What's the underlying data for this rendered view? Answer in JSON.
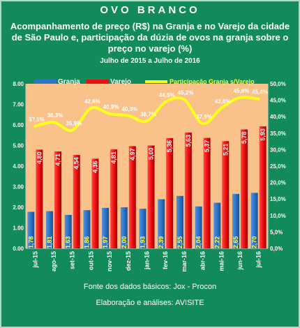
{
  "header": {
    "title": "OVO BRANCO",
    "subtitle": "Acompanhamento de preço (R$) na Granja e no Varejo da cidade de São Paulo e, participação da dúzia de ovos na granja sobre o preço no varejo (%)",
    "period": "Julho de 2015 a Julho de 2016"
  },
  "footer": {
    "source": "Fonte dos dados básicos: Jox - Procon",
    "credit": "Elaboração e análises: AVISITE"
  },
  "colors": {
    "background": "#138a5a",
    "plot_area": "#f8c28a",
    "granja": "#2e74c9",
    "varejo": "#ee1010",
    "participacao": "#ffff1a"
  },
  "chart_data": {
    "type": "bar",
    "categories": [
      "jul-15",
      "ago-15",
      "set-15",
      "out-15",
      "nov-15",
      "dez-15",
      "jan-16",
      "fev-16",
      "mar-16",
      "abr-16",
      "mai-16",
      "jun-16",
      "jul-16"
    ],
    "series": [
      {
        "name": "Granja",
        "type": "bar",
        "axis": "left",
        "values": [
          1.78,
          1.81,
          1.63,
          1.86,
          1.97,
          2.0,
          1.93,
          2.39,
          2.55,
          2.04,
          2.22,
          2.65,
          2.7
        ],
        "labels": [
          "1,78",
          "1,81",
          "1,63",
          "1,86",
          "1,97",
          "2,00",
          "1,93",
          "2,39",
          "2,55",
          "2,04",
          "2,22",
          "2,65",
          "2,70"
        ]
      },
      {
        "name": "Varejo",
        "type": "bar",
        "axis": "left",
        "values": [
          4.8,
          4.71,
          4.54,
          4.36,
          4.81,
          4.97,
          5.0,
          5.36,
          5.63,
          5.37,
          5.21,
          5.78,
          5.93
        ],
        "labels": [
          "4,80",
          "4,71",
          "4,54",
          "4,36",
          "4,81",
          "4,97",
          "5,00",
          "5,36",
          "5,63",
          "5,37",
          "5,21",
          "5,78",
          "5,93"
        ]
      },
      {
        "name": "Participação Granja s/Varejo",
        "type": "line",
        "axis": "right",
        "values": [
          37.1,
          38.3,
          35.9,
          42.6,
          40.9,
          40.3,
          38.7,
          44.5,
          45.2,
          37.9,
          42.6,
          45.8,
          45.4
        ],
        "labels": [
          "37,1%",
          "38,3%",
          "35,9%",
          "42,6%",
          "40,9%",
          "40,3%",
          "38,7%",
          "44,5%",
          "45,2%",
          "37,9%",
          "42,6%",
          "45,8%",
          "45,4%"
        ]
      }
    ],
    "ylim": [
      0,
      8
    ],
    "y_ticks": [
      "0.00",
      "1.00",
      "2.00",
      "3.00",
      "4.00",
      "5.00",
      "6.00",
      "7.00",
      "8.00"
    ],
    "y2lim": [
      0,
      50
    ],
    "y2_ticks": [
      "0,0%",
      "5,0%",
      "10,0%",
      "15,0%",
      "20,0%",
      "25,0%",
      "30,0%",
      "35,0%",
      "40,0%",
      "45,0%",
      "50,0%"
    ],
    "grid": false,
    "legend_position": "top"
  }
}
